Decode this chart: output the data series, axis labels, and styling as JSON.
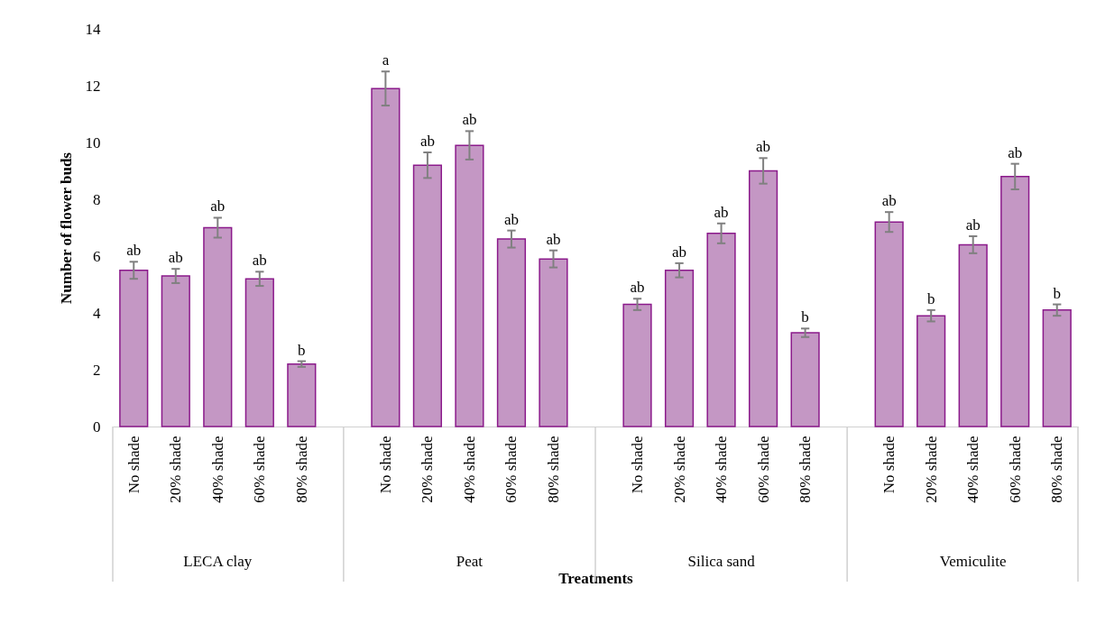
{
  "chart_data": {
    "type": "bar",
    "xlabel": "Treatments",
    "ylabel": "Number of flower buds",
    "categories": [
      "No shade",
      "20% shade",
      "40% shade",
      "60% shade",
      "80% shade",
      null,
      "No shade",
      "20% shade",
      "40% shade",
      "60% shade",
      "80% shade",
      null,
      "No shade",
      "20% shade",
      "40% shade",
      "60% shade",
      "80% shade",
      null,
      "No shade",
      "20% shade",
      "40% shade",
      "60% shade",
      "80% shade"
    ],
    "color": "#c497c4",
    "values": [
      5.5,
      5.3,
      7.0,
      5.2,
      2.2,
      null,
      11.9,
      9.2,
      9.9,
      6.6,
      5.9,
      null,
      4.3,
      5.5,
      6.8,
      9.0,
      3.3,
      null,
      7.2,
      3.9,
      6.4,
      8.8,
      4.1
    ],
    "errors": [
      0.3,
      0.25,
      0.35,
      0.25,
      0.1,
      null,
      0.6,
      0.45,
      0.5,
      0.3,
      0.3,
      null,
      0.2,
      0.25,
      0.35,
      0.45,
      0.15,
      null,
      0.35,
      0.2,
      0.3,
      0.45,
      0.2
    ],
    "value_labels": [
      "ab",
      "ab",
      "ab",
      "ab",
      "b",
      null,
      "a",
      "ab",
      "ab",
      "ab",
      "ab",
      null,
      "ab",
      "ab",
      "ab",
      "ab",
      "b",
      null,
      "ab",
      "b",
      "ab",
      "ab",
      "b"
    ],
    "annotations": [
      "LECA clay",
      "Peat",
      "Silica sand",
      "Vemiculite"
    ],
    "ylim": [
      0,
      14
    ],
    "yticks": [
      0,
      2,
      4,
      6,
      8,
      10,
      12,
      14
    ]
  }
}
